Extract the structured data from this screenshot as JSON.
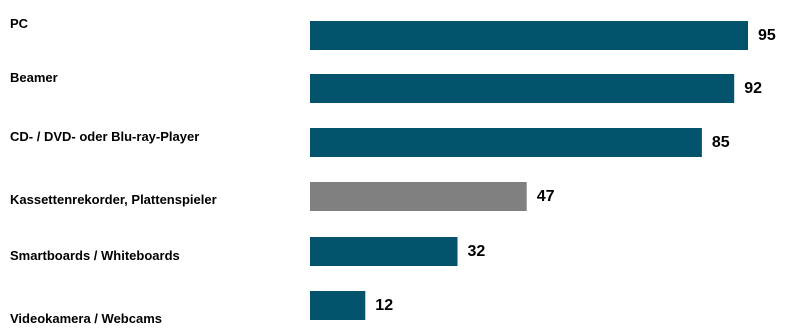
{
  "chart_data": {
    "type": "bar",
    "orientation": "horizontal",
    "categories": [
      "PC",
      "Beamer",
      "CD- / DVD- oder Blu-ray-Player",
      "Kassettenrekorder, Plattenspieler",
      "Smartboards / Whiteboards",
      "Videokamera / Webcams"
    ],
    "values": [
      95,
      92,
      85,
      47,
      32,
      12
    ],
    "highlighted_category": "Kassettenrekorder, Plattenspieler",
    "title": "",
    "xlabel": "",
    "ylabel": "",
    "xlim": [
      0,
      95
    ],
    "grid": false,
    "legend": "none",
    "colors": {
      "bar": "#02536b",
      "highlight": "#808080",
      "label": "#000000"
    }
  }
}
